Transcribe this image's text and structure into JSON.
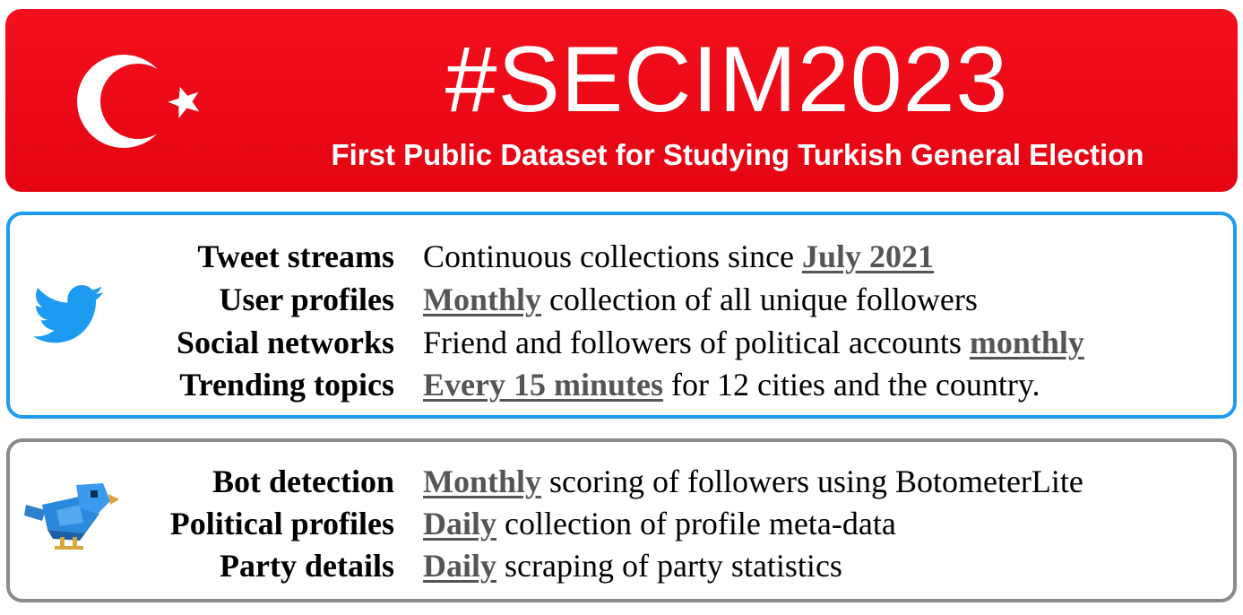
{
  "banner": {
    "title": "#SECIM2023",
    "subtitle": "First Public Dataset for Studying Turkish General Election",
    "flag_icon": "turkish-flag-crescent-star-icon",
    "background_color": "#e8101a"
  },
  "twitter_panel": {
    "icon": "twitter-bird-icon",
    "border_color": "#1d9bf0",
    "rows": [
      {
        "label": "Tweet streams",
        "pre": "Continuous collections since ",
        "highlight": "July 2021",
        "post": ""
      },
      {
        "label": "User profiles",
        "pre": "",
        "highlight": "Monthly",
        "post": " collection of all unique followers"
      },
      {
        "label": "Social networks",
        "pre": "Friend and followers of political accounts ",
        "highlight": "monthly",
        "post": ""
      },
      {
        "label": "Trending topics",
        "pre": "",
        "highlight": "Every 15 minutes",
        "post": " for 12 cities and the country."
      }
    ]
  },
  "bot_panel": {
    "icon": "robot-bird-icon",
    "border_color": "#8a8a8a",
    "rows": [
      {
        "label": "Bot detection",
        "pre": "",
        "highlight": "Monthly",
        "post": " scoring of followers using BotometerLite"
      },
      {
        "label": "Political profiles",
        "pre": "",
        "highlight": "Daily",
        "post": " collection of profile meta-data"
      },
      {
        "label": "Party details",
        "pre": "",
        "highlight": "Daily",
        "post": " scraping of party statistics"
      }
    ]
  }
}
